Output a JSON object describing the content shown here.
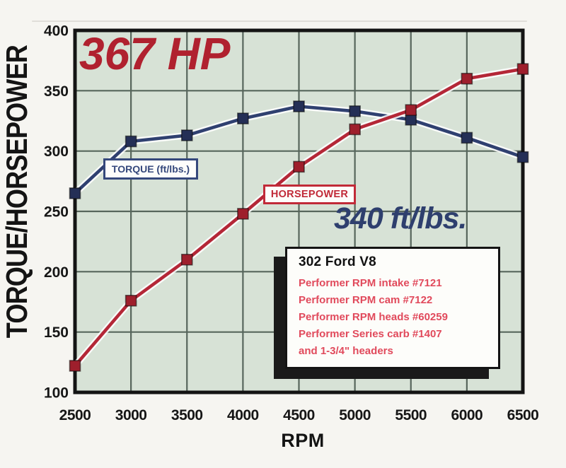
{
  "colors": {
    "page_bg": "#f6f5f1",
    "plot_bg": "#d7e2d6",
    "grid": "#57665c",
    "plot_border": "#141414",
    "torque_line": "#2f4070",
    "torque_marker": "#242f56",
    "hp_line": "#b42737",
    "hp_marker": "#9e1f2c",
    "peak_hp_text": "#b0212f",
    "peak_torque_text": "#2e3f6e",
    "legend_torque": "#35487c",
    "legend_hp": "#c12a38",
    "info_text": "#e14a5c",
    "axis_text": "#161616"
  },
  "chart_data": {
    "type": "line",
    "x": [
      2500,
      3000,
      3500,
      4000,
      4500,
      5000,
      5500,
      6000,
      6500
    ],
    "series": [
      {
        "name": "TORQUE (ft/lbs.)",
        "values": [
          265,
          308,
          313,
          327,
          337,
          333,
          326,
          311,
          295
        ]
      },
      {
        "name": "HORSEPOWER",
        "values": [
          122,
          176,
          210,
          248,
          287,
          318,
          334,
          360,
          368
        ]
      }
    ],
    "annotations": [
      "367 HP",
      "340 ft/lbs."
    ],
    "xlabel": "RPM",
    "ylabel": "TORQUE/HORSEPOWER",
    "xlim": [
      2500,
      6500
    ],
    "ylim": [
      100,
      400
    ],
    "x_ticks": [
      2500,
      3000,
      3500,
      4000,
      4500,
      5000,
      5500,
      6000,
      6500
    ],
    "y_ticks": [
      100,
      150,
      200,
      250,
      300,
      350,
      400
    ],
    "grid": true,
    "legend_position": "boxed labels inside plot"
  },
  "info_box": {
    "title": "302 Ford V8",
    "lines": [
      "Performer RPM intake #7121",
      "Performer RPM cam #7122",
      "Performer RPM heads #60259",
      "Performer Series carb #1407",
      "and 1-3/4\" headers"
    ]
  }
}
